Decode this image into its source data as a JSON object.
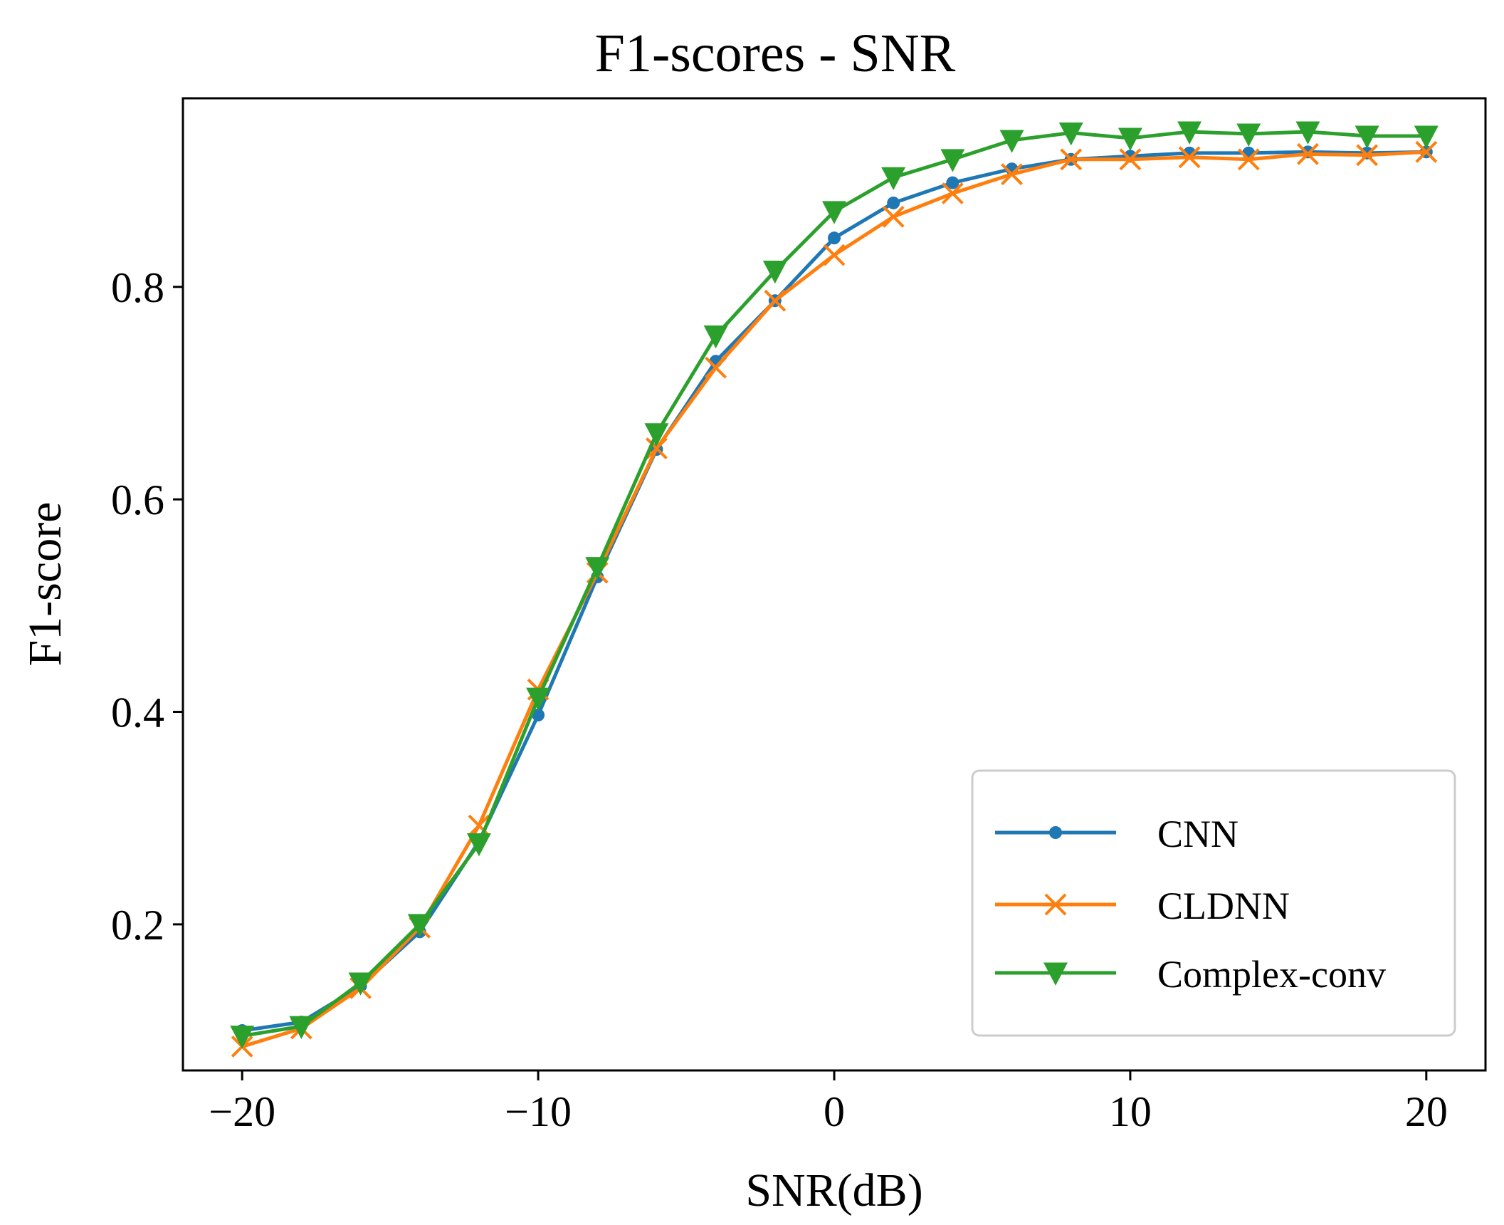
{
  "chart_data": {
    "type": "line",
    "title": "F1-scores - SNR",
    "xlabel": "SNR(dB)",
    "ylabel": "F1-score",
    "xlim": [
      -22,
      22
    ],
    "ylim": [
      0.0625,
      0.9775
    ],
    "grid": false,
    "legend_position": "lower-right",
    "xticks": [
      -20,
      -10,
      0,
      10,
      20
    ],
    "xtick_labels": [
      "−20",
      "−10",
      "0",
      "10",
      "20"
    ],
    "yticks": [
      0.2,
      0.4,
      0.6,
      0.8
    ],
    "ytick_labels": [
      "0.2",
      "0.4",
      "0.6",
      "0.8"
    ],
    "x": [
      -20,
      -18,
      -16,
      -14,
      -12,
      -10,
      -8,
      -6,
      -4,
      -2,
      0,
      2,
      4,
      6,
      8,
      10,
      12,
      14,
      16,
      18,
      20
    ],
    "series": [
      {
        "name": "CNN",
        "color": "#1f77b4",
        "marker": "point",
        "values": [
          0.1,
          0.108,
          0.142,
          0.193,
          0.278,
          0.397,
          0.527,
          0.647,
          0.73,
          0.787,
          0.846,
          0.879,
          0.898,
          0.911,
          0.92,
          0.923,
          0.926,
          0.926,
          0.927,
          0.926,
          0.927
        ]
      },
      {
        "name": "CLDNN",
        "color": "#ff7f0e",
        "marker": "x",
        "values": [
          0.085,
          0.102,
          0.14,
          0.197,
          0.293,
          0.421,
          0.531,
          0.648,
          0.724,
          0.787,
          0.83,
          0.866,
          0.888,
          0.906,
          0.92,
          0.92,
          0.922,
          0.92,
          0.925,
          0.924,
          0.927
        ]
      },
      {
        "name": "Complex-conv",
        "color": "#2ca02c",
        "marker": "triangle-down",
        "values": [
          0.095,
          0.104,
          0.145,
          0.2,
          0.276,
          0.413,
          0.536,
          0.662,
          0.754,
          0.815,
          0.871,
          0.903,
          0.92,
          0.938,
          0.945,
          0.94,
          0.946,
          0.944,
          0.946,
          0.942,
          0.942
        ]
      }
    ]
  }
}
